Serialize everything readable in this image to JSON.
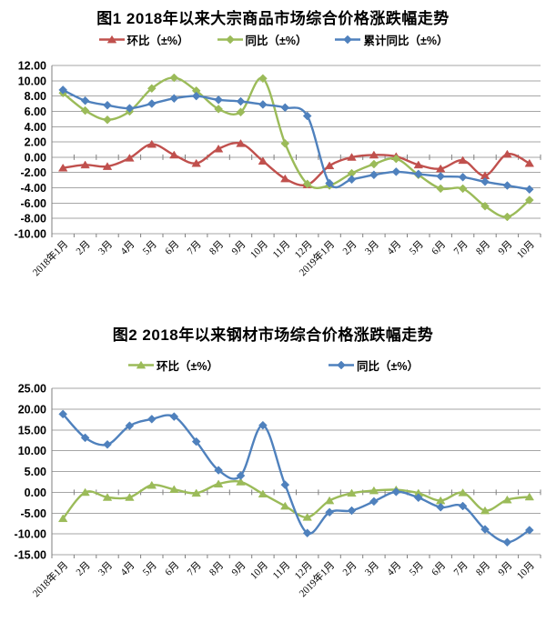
{
  "chart_data": [
    {
      "type": "line",
      "title": "图1 2018年以来大宗商品市场综合价格涨跌幅走势",
      "categories": [
        "2018年1月",
        "2月",
        "3月",
        "4月",
        "5月",
        "6月",
        "7月",
        "8月",
        "9月",
        "10月",
        "11月",
        "12月",
        "2019年1月",
        "2月",
        "3月",
        "4月",
        "5月",
        "6月",
        "7月",
        "8月",
        "9月",
        "10月"
      ],
      "ylim": [
        -10,
        12
      ],
      "yticks": [
        12,
        10,
        8,
        6,
        4,
        2,
        0,
        -2,
        -4,
        -6,
        -8,
        -10
      ],
      "ytick_format": "2dp",
      "grid": true,
      "legend_position": "top",
      "grid_color": "#a6a6a6",
      "axis_color": "#7f7f7f",
      "line_smoothing": true,
      "series": [
        {
          "id": "huanbi",
          "name": "环比（±%）",
          "color": "#c0504d",
          "marker": "triangle",
          "values": [
            -1.4,
            -1.0,
            -1.2,
            -0.1,
            1.7,
            0.3,
            -0.8,
            1.1,
            1.8,
            -0.5,
            -2.8,
            -3.6,
            -1.1,
            0.0,
            0.3,
            0.1,
            -1.0,
            -1.5,
            -0.4,
            -2.4,
            0.4,
            -0.8
          ]
        },
        {
          "id": "tongbi",
          "name": "同比（±%）",
          "color": "#9bbb59",
          "marker": "diamond",
          "values": [
            8.4,
            6.1,
            4.9,
            6.0,
            9.0,
            10.4,
            8.7,
            6.3,
            5.9,
            10.3,
            1.8,
            -3.5,
            -3.7,
            -2.1,
            -0.9,
            -0.2,
            -2.3,
            -4.1,
            -4.1,
            -6.4,
            -7.8,
            -5.6
          ]
        },
        {
          "id": "leiji-tongbi",
          "name": "累计同比（±%）",
          "color": "#4f81bd",
          "marker": "diamond",
          "values": [
            8.8,
            7.4,
            6.8,
            6.4,
            7.0,
            7.7,
            8.0,
            7.5,
            7.3,
            6.9,
            6.5,
            5.4,
            -3.4,
            -2.9,
            -2.3,
            -1.9,
            -2.2,
            -2.5,
            -2.6,
            -3.2,
            -3.7,
            -4.2
          ]
        }
      ]
    },
    {
      "type": "line",
      "title": "图2 2018年以来钢材市场综合价格涨跌幅走势",
      "categories": [
        "2018年1月",
        "2月",
        "3月",
        "4月",
        "5月",
        "6月",
        "7月",
        "8月",
        "9月",
        "10月",
        "11月",
        "12月",
        "2019年1月",
        "2月",
        "3月",
        "4月",
        "5月",
        "6月",
        "7月",
        "8月",
        "9月",
        "10月"
      ],
      "ylim": [
        -15,
        25
      ],
      "yticks": [
        25,
        20,
        15,
        10,
        5,
        0,
        -5,
        -10,
        -15
      ],
      "ytick_format": "2dp",
      "grid": true,
      "legend_position": "top",
      "grid_color": "#a6a6a6",
      "axis_color": "#7f7f7f",
      "line_smoothing": true,
      "series": [
        {
          "id": "huanbi",
          "name": "环比（±%）",
          "color": "#9bbb59",
          "marker": "triangle",
          "values": [
            -6.3,
            0.0,
            -1.2,
            -1.2,
            1.7,
            0.7,
            -0.2,
            2.0,
            2.5,
            -0.4,
            -3.3,
            -6.0,
            -2.0,
            -0.2,
            0.4,
            0.6,
            -0.2,
            -2.0,
            -0.1,
            -4.4,
            -1.8,
            -1.1
          ]
        },
        {
          "id": "tongbi",
          "name": "同比（±%）",
          "color": "#4f81bd",
          "marker": "diamond",
          "values": [
            18.8,
            13.1,
            11.5,
            16.0,
            17.6,
            18.2,
            12.2,
            5.3,
            4.0,
            16.1,
            1.8,
            -9.8,
            -4.8,
            -4.4,
            -2.2,
            0.1,
            -1.3,
            -3.6,
            -3.3,
            -8.9,
            -12.0,
            -9.1
          ]
        }
      ]
    }
  ]
}
